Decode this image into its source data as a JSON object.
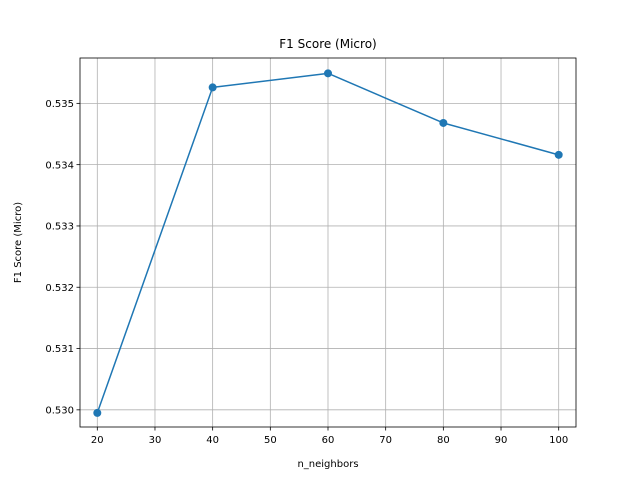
{
  "chart_data": {
    "type": "line",
    "title": "F1 Score (Micro)",
    "xlabel": "n_neighbors",
    "ylabel": "F1 Score (Micro)",
    "x": [
      20,
      40,
      60,
      80,
      100
    ],
    "series": [
      {
        "values": [
          0.52995,
          0.53526,
          0.53549,
          0.53468,
          0.53416
        ],
        "color": "#1f77b4",
        "marker": "circle"
      }
    ],
    "xlim": [
      17,
      103
    ],
    "ylim": [
      0.52972,
      0.53574
    ],
    "xticks": [
      20,
      30,
      40,
      50,
      60,
      70,
      80,
      90,
      100
    ],
    "xtick_labels": [
      "20",
      "30",
      "40",
      "50",
      "60",
      "70",
      "80",
      "90",
      "100"
    ],
    "yticks": [
      0.53,
      0.531,
      0.532,
      0.533,
      0.534,
      0.535
    ],
    "ytick_labels": [
      "0.530",
      "0.531",
      "0.532",
      "0.533",
      "0.534",
      "0.535"
    ],
    "grid": true,
    "legend": false
  }
}
